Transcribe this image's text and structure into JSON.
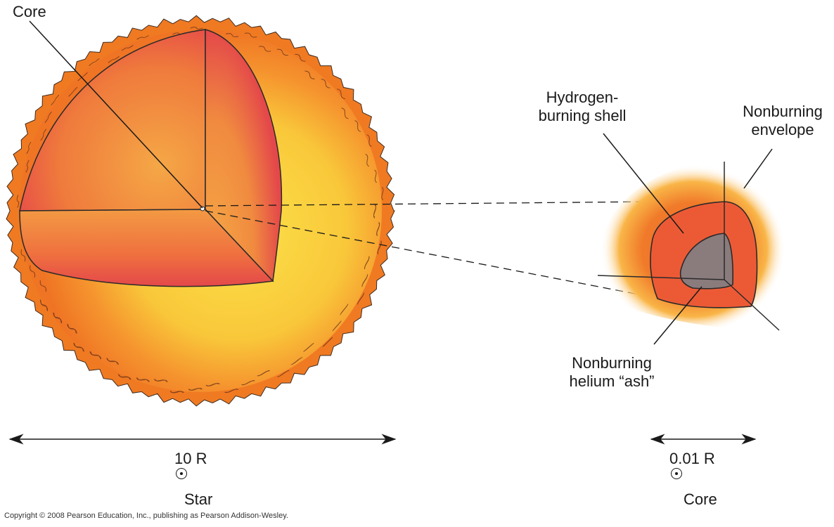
{
  "labels": {
    "core_star": "Core",
    "hydrogen_shell_line1": "Hydrogen-",
    "hydrogen_shell_line2": "burning shell",
    "envelope_line1": "Nonburning",
    "envelope_line2": "envelope",
    "ash_line1": "Nonburning",
    "ash_line2": "helium “ash”"
  },
  "scale": {
    "star_size": "10 R",
    "core_size": "0.01 R"
  },
  "captions": {
    "star": "Star",
    "core": "Core"
  },
  "copyright": "Copyright © 2008 Pearson Education, Inc., publishing as Pearson Addison-Wesley.",
  "colors": {
    "star_rim": "#f07a22",
    "star_inner_glow": "#f8cf3a",
    "cutaway_red": "#e6434a",
    "cutaway_orange": "#f29a40",
    "shell": "#ec5a35",
    "ash": "#8a7b7d"
  }
}
